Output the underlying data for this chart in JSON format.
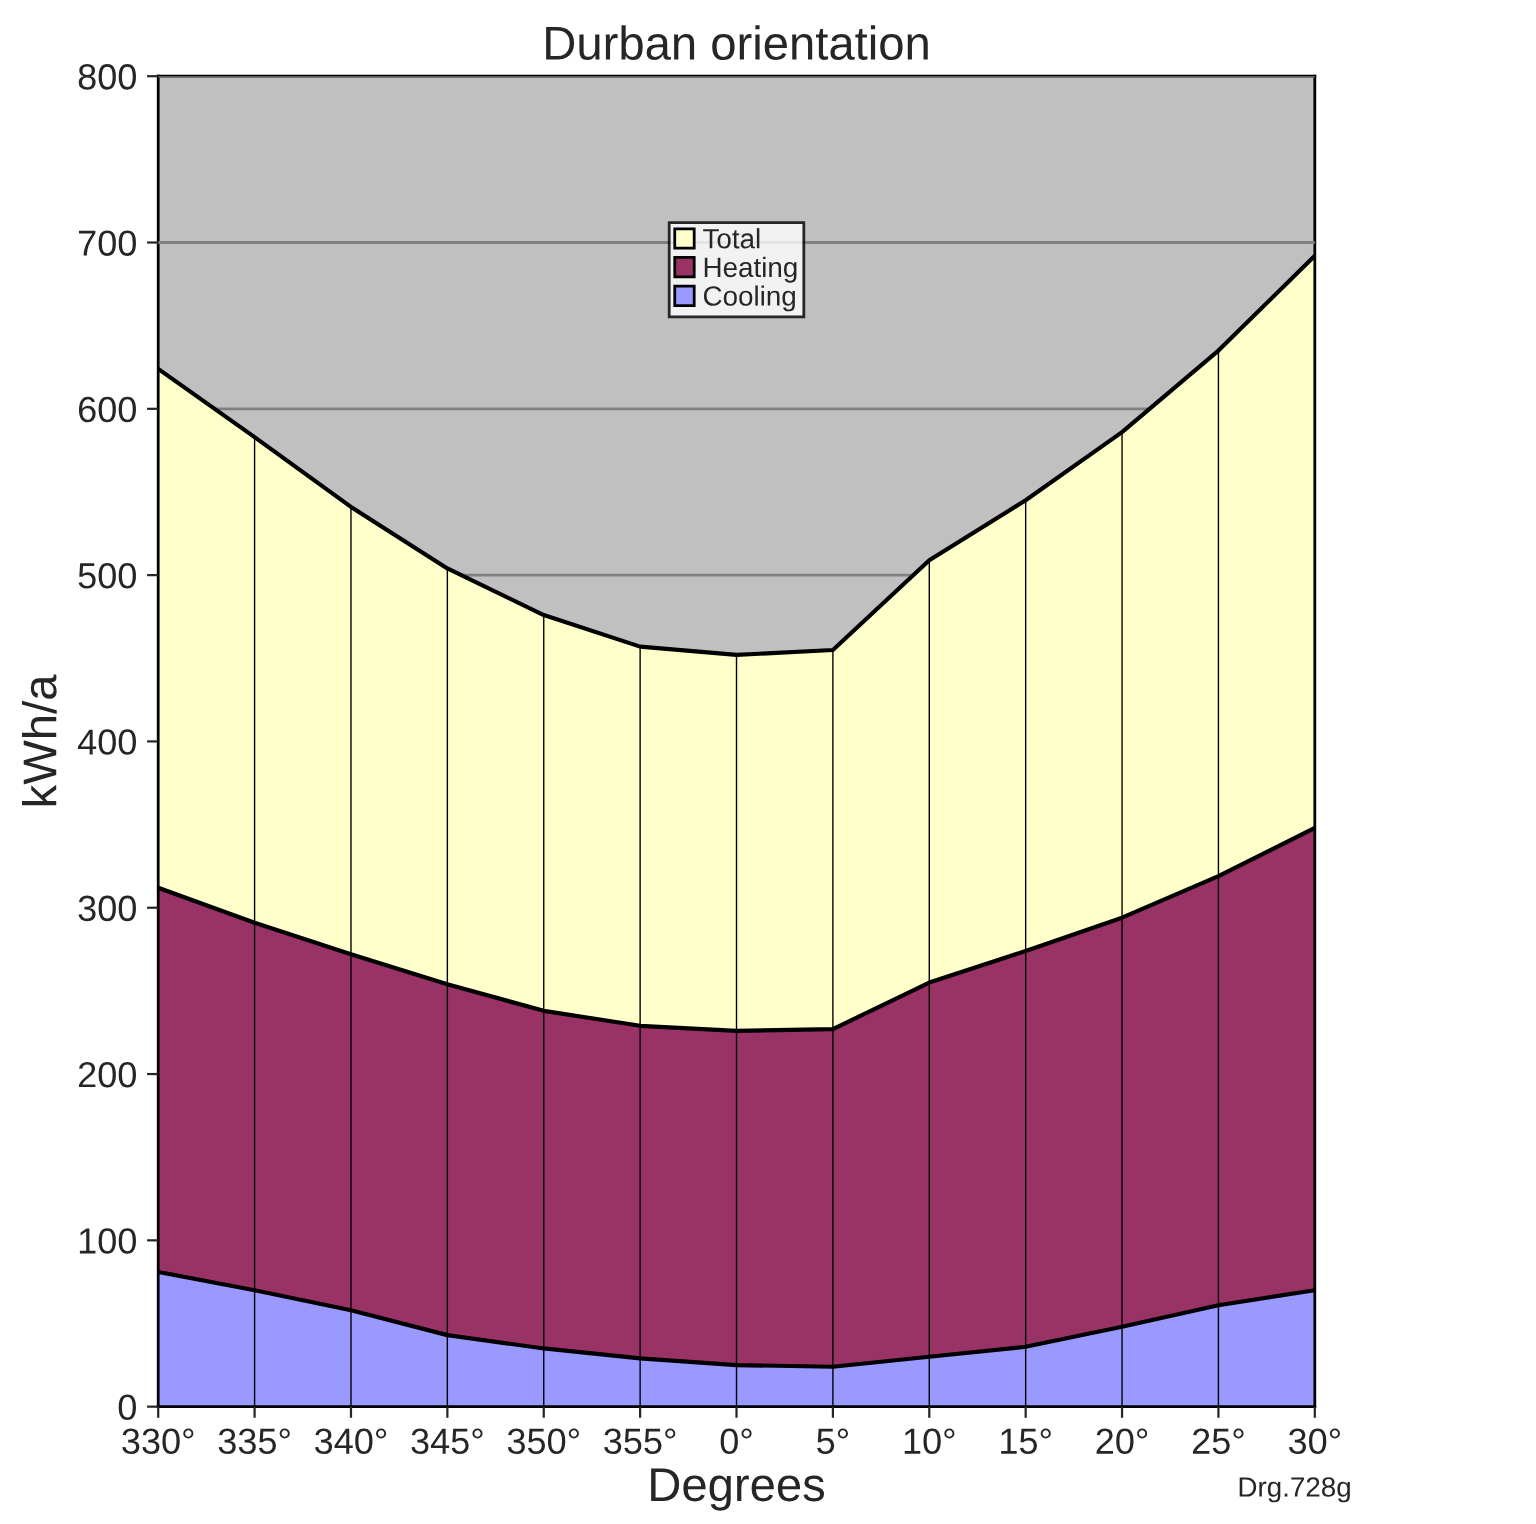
{
  "chart_data": {
    "type": "area",
    "title": "Durban orientation",
    "xlabel": "Degrees",
    "ylabel": "kWh/a",
    "categories": [
      "330°",
      "335°",
      "340°",
      "345°",
      "350°",
      "355°",
      "0°",
      "5°",
      "10°",
      "15°",
      "20°",
      "25°",
      "30°"
    ],
    "stacked": true,
    "series": [
      {
        "name": "Cooling",
        "color": "#9999ff",
        "values": [
          81,
          70,
          58,
          43,
          35,
          29,
          25,
          24,
          30,
          36,
          48,
          61,
          70
        ]
      },
      {
        "name": "Heating",
        "color": "#993366",
        "values": [
          231,
          221,
          214,
          211,
          203,
          200,
          201,
          203,
          225,
          238,
          246,
          258,
          278
        ]
      },
      {
        "name": "Total",
        "color": "#ffffcc",
        "values": [
          312,
          292,
          269,
          250,
          238,
          228,
          226,
          228,
          254,
          271,
          292,
          316,
          344
        ]
      }
    ],
    "ylim": [
      0,
      800
    ],
    "yticks": [
      0,
      100,
      200,
      300,
      400,
      500,
      600,
      700,
      800
    ],
    "grid": true,
    "legend": "top",
    "annotations": [
      "Drg.728g"
    ]
  }
}
